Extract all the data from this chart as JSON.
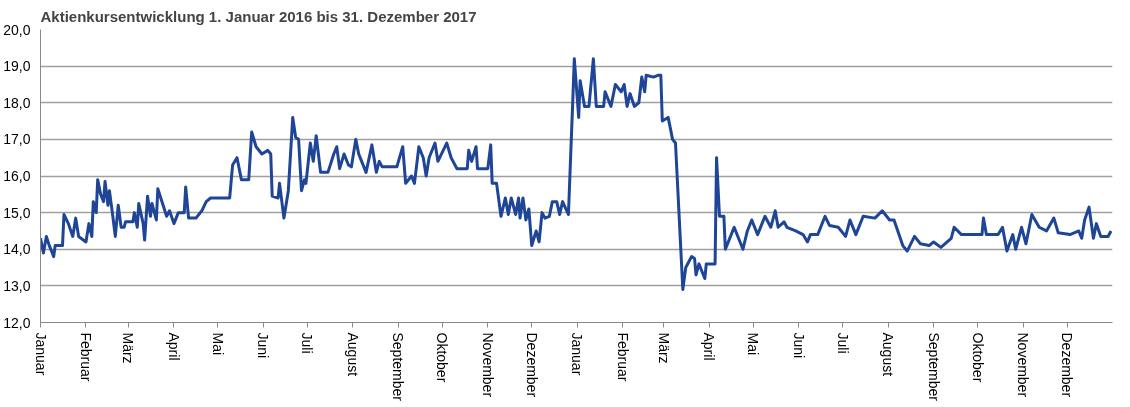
{
  "chart_data": {
    "type": "line",
    "title": "Aktienkursentwicklung 1. Januar 2016 bis 31. Dezember 2017",
    "xlim": [
      "2016-01-01",
      "2018-01-01"
    ],
    "xticks": [
      {
        "value": "2016-01-01",
        "label": "Januar"
      },
      {
        "value": "2016-02-01",
        "label": "Februar"
      },
      {
        "value": "2016-03-01",
        "label": "März"
      },
      {
        "value": "2016-04-01",
        "label": "April"
      },
      {
        "value": "2016-05-01",
        "label": "Mai"
      },
      {
        "value": "2016-06-01",
        "label": "Juni"
      },
      {
        "value": "2016-07-01",
        "label": "Juli"
      },
      {
        "value": "2016-08-01",
        "label": "August"
      },
      {
        "value": "2016-09-01",
        "label": "September"
      },
      {
        "value": "2016-10-01",
        "label": "Oktober"
      },
      {
        "value": "2016-11-01",
        "label": "November"
      },
      {
        "value": "2016-12-01",
        "label": "Dezember"
      },
      {
        "value": "2017-01-01",
        "label": "Januar"
      },
      {
        "value": "2017-02-01",
        "label": "Februar"
      },
      {
        "value": "2017-03-01",
        "label": "März"
      },
      {
        "value": "2017-04-01",
        "label": "April"
      },
      {
        "value": "2017-05-01",
        "label": "Mai"
      },
      {
        "value": "2017-06-01",
        "label": "Juni"
      },
      {
        "value": "2017-07-01",
        "label": "Juli"
      },
      {
        "value": "2017-08-01",
        "label": "August"
      },
      {
        "value": "2017-09-01",
        "label": "September"
      },
      {
        "value": "2017-10-01",
        "label": "Oktober"
      },
      {
        "value": "2017-11-01",
        "label": "November"
      },
      {
        "value": "2017-12-01",
        "label": "Dezember"
      }
    ],
    "ylim": [
      12,
      20
    ],
    "yticks": [
      {
        "value": 12,
        "label": "12,0"
      },
      {
        "value": 13,
        "label": "13,0"
      },
      {
        "value": 14,
        "label": "14,0"
      },
      {
        "value": 15,
        "label": "15,0"
      },
      {
        "value": 16,
        "label": "16,0"
      },
      {
        "value": 17,
        "label": "17,0"
      },
      {
        "value": 18,
        "label": "18,0"
      },
      {
        "value": 19,
        "label": "19,0"
      },
      {
        "value": 20,
        "label": "20,0"
      }
    ],
    "grid": "y",
    "marker": "none",
    "line_style": "solid",
    "series": [
      {
        "color": "#1f4597",
        "x": [
          "2016-01-01",
          "2016-01-03",
          "2016-01-05",
          "2016-01-07",
          "2016-01-10",
          "2016-01-11",
          "2016-01-16",
          "2016-01-17",
          "2016-01-20",
          "2016-01-23",
          "2016-01-25",
          "2016-01-27",
          "2016-02-01",
          "2016-02-03",
          "2016-02-05",
          "2016-02-06",
          "2016-02-08",
          "2016-02-09",
          "2016-02-11",
          "2016-02-13",
          "2016-02-14",
          "2016-02-16",
          "2016-02-17",
          "2016-02-19",
          "2016-02-21",
          "2016-02-23",
          "2016-02-25",
          "2016-02-27",
          "2016-02-28",
          "2016-03-04",
          "2016-03-05",
          "2016-03-07",
          "2016-03-08",
          "2016-03-11",
          "2016-03-12",
          "2016-03-14",
          "2016-03-16",
          "2016-03-17",
          "2016-03-20",
          "2016-03-21",
          "2016-03-27",
          "2016-03-29",
          "2016-04-01",
          "2016-04-04",
          "2016-04-08",
          "2016-04-09",
          "2016-04-11",
          "2016-04-16",
          "2016-04-20",
          "2016-04-23",
          "2016-04-26",
          "2016-05-09",
          "2016-05-11",
          "2016-05-14",
          "2016-05-17",
          "2016-05-22",
          "2016-05-24",
          "2016-05-27",
          "2016-05-31",
          "2016-06-04",
          "2016-06-06",
          "2016-06-07",
          "2016-06-11",
          "2016-06-12",
          "2016-06-15",
          "2016-06-18",
          "2016-06-21",
          "2016-06-23",
          "2016-06-25",
          "2016-06-27",
          "2016-06-29",
          "2016-06-30",
          "2016-07-03",
          "2016-07-05",
          "2016-07-07",
          "2016-07-10",
          "2016-07-15",
          "2016-07-19",
          "2016-07-21",
          "2016-07-23",
          "2016-07-26",
          "2016-07-29",
          "2016-07-31",
          "2016-08-03",
          "2016-08-05",
          "2016-08-07",
          "2016-08-10",
          "2016-08-14",
          "2016-08-17",
          "2016-08-19",
          "2016-08-21",
          "2016-08-31",
          "2016-09-04",
          "2016-09-06",
          "2016-09-10",
          "2016-09-12",
          "2016-09-15",
          "2016-09-18",
          "2016-09-20",
          "2016-09-22",
          "2016-09-26",
          "2016-09-28",
          "2016-10-04",
          "2016-10-07",
          "2016-10-11",
          "2016-10-18",
          "2016-10-19",
          "2016-10-21",
          "2016-10-24",
          "2016-10-25",
          "2016-11-01",
          "2016-11-03",
          "2016-11-04",
          "2016-11-07",
          "2016-11-10",
          "2016-11-13",
          "2016-11-15",
          "2016-11-17",
          "2016-11-20",
          "2016-11-22",
          "2016-11-23",
          "2016-11-25",
          "2016-11-27",
          "2016-11-29",
          "2016-12-01",
          "2016-12-04",
          "2016-12-06",
          "2016-12-08",
          "2016-12-10",
          "2016-12-13",
          "2016-12-15",
          "2016-12-18",
          "2016-12-20",
          "2016-12-22",
          "2016-12-26",
          "2016-12-29",
          "2016-12-30",
          "2017-01-02",
          "2017-01-03",
          "2017-01-06",
          "2017-01-09",
          "2017-01-12",
          "2017-01-14",
          "2017-01-19",
          "2017-01-20",
          "2017-01-24",
          "2017-01-27",
          "2017-01-31",
          "2017-02-02",
          "2017-02-04",
          "2017-02-06",
          "2017-02-09",
          "2017-02-12",
          "2017-02-14",
          "2017-02-16",
          "2017-02-17",
          "2017-02-22",
          "2017-02-25",
          "2017-02-27",
          "2017-02-28",
          "2017-03-04",
          "2017-03-07",
          "2017-03-09",
          "2017-03-14",
          "2017-03-16",
          "2017-03-20",
          "2017-03-22",
          "2017-03-23",
          "2017-03-25",
          "2017-03-27",
          "2017-03-29",
          "2017-03-30",
          "2017-04-03",
          "2017-04-05",
          "2017-04-06",
          "2017-04-08",
          "2017-04-11",
          "2017-04-12",
          "2017-04-13",
          "2017-04-18",
          "2017-04-24",
          "2017-04-27",
          "2017-04-30",
          "2017-05-04",
          "2017-05-09",
          "2017-05-13",
          "2017-05-16",
          "2017-05-18",
          "2017-05-22",
          "2017-05-24",
          "2017-05-30",
          "2017-06-04",
          "2017-06-07",
          "2017-06-09",
          "2017-06-14",
          "2017-06-19",
          "2017-06-22",
          "2017-06-28",
          "2017-07-03",
          "2017-07-06",
          "2017-07-10",
          "2017-07-15",
          "2017-07-23",
          "2017-07-28",
          "2017-08-02",
          "2017-08-05",
          "2017-08-11",
          "2017-08-14",
          "2017-08-19",
          "2017-08-23",
          "2017-08-29",
          "2017-09-01",
          "2017-09-06",
          "2017-09-13",
          "2017-09-15",
          "2017-09-20",
          "2017-10-04",
          "2017-10-05",
          "2017-10-07",
          "2017-10-15",
          "2017-10-18",
          "2017-10-21",
          "2017-10-25",
          "2017-10-27",
          "2017-10-31",
          "2017-11-03",
          "2017-11-07",
          "2017-11-12",
          "2017-11-17",
          "2017-11-22",
          "2017-11-25",
          "2017-12-03",
          "2017-12-09",
          "2017-12-11",
          "2017-12-13",
          "2017-12-16",
          "2017-12-19",
          "2017-12-21",
          "2017-12-24",
          "2017-12-29",
          "2017-12-31"
        ],
        "values": [
          14.3,
          13.9,
          14.35,
          14.1,
          13.8,
          14.1,
          14.1,
          14.95,
          14.7,
          14.35,
          14.85,
          14.35,
          14.2,
          14.7,
          14.35,
          15.3,
          15.0,
          15.9,
          15.5,
          15.3,
          15.85,
          15.2,
          15.6,
          15.0,
          14.35,
          15.2,
          14.6,
          14.6,
          14.75,
          14.75,
          15.0,
          14.6,
          15.25,
          14.7,
          14.25,
          15.45,
          14.9,
          15.25,
          14.8,
          15.65,
          14.9,
          15.05,
          14.7,
          15.0,
          15.0,
          15.7,
          14.85,
          14.85,
          15.05,
          15.3,
          15.4,
          15.4,
          16.3,
          16.5,
          15.9,
          15.9,
          17.2,
          16.8,
          16.6,
          16.7,
          16.6,
          15.45,
          15.4,
          15.8,
          14.85,
          15.6,
          17.6,
          17.05,
          17.0,
          15.6,
          15.9,
          15.8,
          16.9,
          16.4,
          17.1,
          16.1,
          16.1,
          16.6,
          16.8,
          16.2,
          16.6,
          16.3,
          16.25,
          17.0,
          16.6,
          16.4,
          16.1,
          16.85,
          16.1,
          16.4,
          16.25,
          16.25,
          16.8,
          15.8,
          16.0,
          15.8,
          16.8,
          16.5,
          16.0,
          16.5,
          16.9,
          16.4,
          16.9,
          16.5,
          16.2,
          16.2,
          16.7,
          16.4,
          16.8,
          16.2,
          16.2,
          16.85,
          15.8,
          15.8,
          14.9,
          15.4,
          14.95,
          15.4,
          14.95,
          15.4,
          14.85,
          15.4,
          14.8,
          15.1,
          14.1,
          14.5,
          14.2,
          15.0,
          14.85,
          14.9,
          15.3,
          15.3,
          14.95,
          15.3,
          14.95,
          18.1,
          19.2,
          17.6,
          18.6,
          17.9,
          17.9,
          19.2,
          17.9,
          17.9,
          18.3,
          17.9,
          18.5,
          18.3,
          18.5,
          17.9,
          18.25,
          17.9,
          18.0,
          18.7,
          18.3,
          18.75,
          18.7,
          18.75,
          18.75,
          17.5,
          17.6,
          17.0,
          16.9,
          12.9,
          13.5,
          13.8,
          13.75,
          13.3,
          13.6,
          13.4,
          13.2,
          13.6,
          13.6,
          13.6,
          16.5,
          14.9,
          14.9,
          14.0,
          14.1,
          14.6,
          14.0,
          14.5,
          14.8,
          14.4,
          14.9,
          14.6,
          15.05,
          14.6,
          14.75,
          14.6,
          14.5,
          14.4,
          14.2,
          14.4,
          14.4,
          14.9,
          14.65,
          14.6,
          14.35,
          14.8,
          14.4,
          14.9,
          14.85,
          15.05,
          14.8,
          14.8,
          14.1,
          13.95,
          14.35,
          14.15,
          14.1,
          14.2,
          14.05,
          14.3,
          14.6,
          14.4,
          14.4,
          14.85,
          14.4,
          14.4,
          14.6,
          13.95,
          14.4,
          14.0,
          14.6,
          14.15,
          14.95,
          14.6,
          14.5,
          14.85,
          14.45,
          14.4,
          14.5,
          14.3,
          14.8,
          15.15,
          14.3,
          14.7,
          14.35,
          14.35,
          14.5
        ]
      }
    ]
  }
}
